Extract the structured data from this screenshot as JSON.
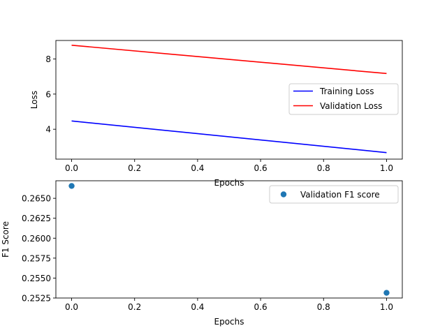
{
  "chart_data": [
    {
      "type": "line",
      "xlabel": "Epochs",
      "ylabel": "Loss",
      "xlim": [
        -0.05,
        1.05
      ],
      "ylim": [
        2.3,
        9.05
      ],
      "xticks": [
        0.0,
        0.2,
        0.4,
        0.6,
        0.8,
        1.0
      ],
      "xtick_labels": [
        "0.0",
        "0.2",
        "0.4",
        "0.6",
        "0.8",
        "1.0"
      ],
      "yticks": [
        4,
        6,
        8
      ],
      "ytick_labels": [
        "4",
        "6",
        "8"
      ],
      "grid": false,
      "legend_position": "center-right",
      "series": [
        {
          "name": "Training Loss",
          "color": "#0000ff",
          "x": [
            0,
            1
          ],
          "y": [
            4.47,
            2.67
          ]
        },
        {
          "name": "Validation Loss",
          "color": "#ff0000",
          "x": [
            0,
            1
          ],
          "y": [
            8.78,
            7.17
          ]
        }
      ]
    },
    {
      "type": "scatter",
      "xlabel": "Epochs",
      "ylabel": "F1 Score",
      "xlim": [
        -0.05,
        1.05
      ],
      "ylim": [
        0.2525,
        0.2672
      ],
      "xticks": [
        0.0,
        0.2,
        0.4,
        0.6,
        0.8,
        1.0
      ],
      "xtick_labels": [
        "0.0",
        "0.2",
        "0.4",
        "0.6",
        "0.8",
        "1.0"
      ],
      "yticks": [
        0.2525,
        0.255,
        0.2575,
        0.26,
        0.2625,
        0.265
      ],
      "ytick_labels": [
        "0.2525",
        "0.2550",
        "0.2575",
        "0.2600",
        "0.2625",
        "0.2650"
      ],
      "grid": false,
      "legend_position": "top-right",
      "series": [
        {
          "name": "Validation F1 score",
          "color": "#1f77b4",
          "x": [
            0,
            1
          ],
          "y": [
            0.26655,
            0.25315
          ]
        }
      ]
    }
  ]
}
